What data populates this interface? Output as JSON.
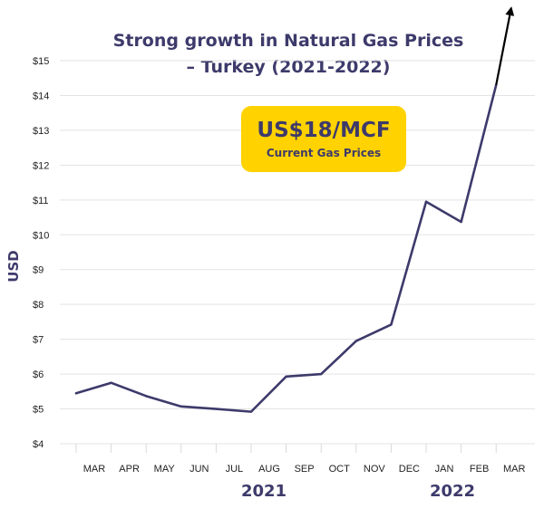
{
  "chart_data": {
    "type": "line",
    "title_lines": [
      "Strong growth in Natural Gas Prices",
      "– Turkey (2021-2022)"
    ],
    "ylabel": "USD",
    "ylim": [
      4,
      15
    ],
    "yticks": [
      "$4",
      "$5",
      "$6",
      "$7",
      "$8",
      "$9",
      "$10",
      "$11",
      "$12",
      "$13",
      "$14",
      "$15"
    ],
    "categories": [
      "MAR",
      "APR",
      "MAY",
      "JUN",
      "JUL",
      "AUG",
      "SEP",
      "OCT",
      "NOV",
      "DEC",
      "JAN",
      "FEB",
      "MAR"
    ],
    "year_labels": [
      "2021",
      "2022"
    ],
    "values": [
      5.45,
      5.75,
      5.37,
      5.07,
      5.0,
      4.92,
      5.93,
      6.0,
      6.95,
      7.42,
      10.95,
      10.37,
      14.3
    ],
    "arrow_note": "line continues upward beyond the chart top with an arrow",
    "callout": {
      "main": "US$18/MCF",
      "sub": "Current Gas Prices",
      "color": "#ffd200"
    },
    "line_color": "#3d3a6b",
    "grid": true
  }
}
